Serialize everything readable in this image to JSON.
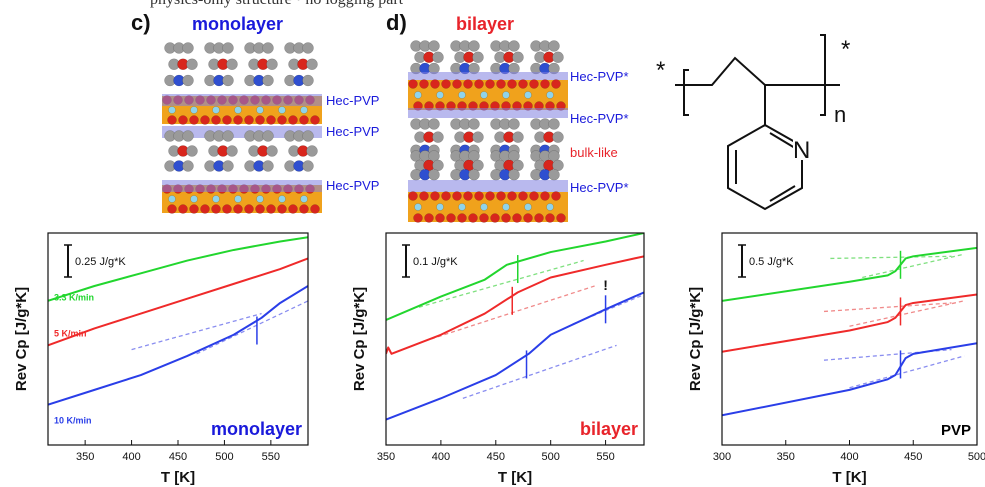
{
  "top_strip_text": "physics-only structure • no logging part",
  "panels": {
    "c": {
      "letter": "c)",
      "title": "monolayer",
      "title_color": "#1a1adb",
      "labels": [
        "Hec-PVP",
        "Hec-PVP",
        "Hec-PVP"
      ]
    },
    "d": {
      "letter": "d)",
      "title": "bilayer",
      "title_color": "#e8242b",
      "labels": [
        "Hec-PVP*",
        "Hec-PVP*",
        "bulk-like",
        "Hec-PVP*"
      ],
      "label_colors": [
        "#1a1adb",
        "#1a1adb",
        "#e8242b",
        "#1a1adb"
      ]
    }
  },
  "structure": {
    "star_left": "*",
    "star_right": "*",
    "subscript": "n",
    "nitrogen": "N"
  },
  "colors": {
    "green": "#22d62e",
    "red": "#ef2a2a",
    "blue": "#2a3ee8",
    "green_dash": "#7fe07f",
    "red_dash": "#f08a8a",
    "blue_dash": "#8a8ef0",
    "atom_red": "#d8261d",
    "atom_orange": "#f0a21c",
    "atom_cyan": "#8fd3ea",
    "atom_gray": "#9a9a9a",
    "band": "#7f7fe0"
  },
  "chart_data": [
    {
      "type": "line",
      "name": "monolayer",
      "panel_label": "monolayer",
      "panel_label_color": "#1a1adb",
      "xlabel": "T [K]",
      "ylabel": "Rev Cp [J/g*K]",
      "xlim": [
        310,
        590
      ],
      "xticks": [
        350,
        400,
        450,
        500,
        550
      ],
      "scale_bar": "0.25 J/g*K",
      "series": [
        {
          "name": "3.3 K/min",
          "color": "#22d62e",
          "label_color": "#22d62e",
          "x": [
            310,
            360,
            410,
            460,
            510,
            560,
            590
          ],
          "y": [
            0.68,
            0.75,
            0.81,
            0.87,
            0.92,
            0.96,
            0.98
          ]
        },
        {
          "name": "5 K/min",
          "color": "#ef2a2a",
          "label_color": "#ef2a2a",
          "x": [
            310,
            360,
            410,
            460,
            510,
            560,
            590
          ],
          "y": [
            0.47,
            0.55,
            0.62,
            0.69,
            0.76,
            0.83,
            0.88
          ]
        },
        {
          "name": "10 K/min",
          "color": "#2a3ee8",
          "label_color": "#2a3ee8",
          "x": [
            310,
            360,
            410,
            460,
            510,
            540,
            560,
            590
          ],
          "y": [
            0.19,
            0.26,
            0.33,
            0.42,
            0.52,
            0.6,
            0.67,
            0.75
          ]
        }
      ],
      "dashed": [
        {
          "color": "#8a8ef0",
          "x": [
            400,
            540
          ],
          "y": [
            0.45,
            0.62
          ]
        },
        {
          "color": "#8a8ef0",
          "x": [
            470,
            595
          ],
          "y": [
            0.43,
            0.69
          ]
        }
      ],
      "markers": [
        {
          "color": "#2a3ee8",
          "x": 535,
          "y": 0.54
        }
      ],
      "series_label_positions": [
        [
          0.46,
          0.7
        ],
        [
          0.42,
          0.53
        ],
        [
          0.3,
          0.12
        ]
      ]
    },
    {
      "type": "line",
      "name": "bilayer",
      "panel_label": "bilayer",
      "panel_label_color": "#e8242b",
      "xlabel": "T [K]",
      "ylabel": "Rev Cp [J/g*K]",
      "xlim": [
        350,
        585
      ],
      "xticks": [
        350,
        400,
        450,
        500,
        550
      ],
      "scale_bar": "0.1 J/g*K",
      "annotation": "!",
      "series": [
        {
          "name": "green",
          "color": "#22d62e",
          "x": [
            350,
            400,
            440,
            460,
            500,
            550,
            585
          ],
          "y": [
            0.59,
            0.7,
            0.78,
            0.85,
            0.91,
            0.96,
            1.0
          ]
        },
        {
          "name": "red",
          "color": "#ef2a2a",
          "x": [
            350,
            352,
            355,
            400,
            440,
            470,
            500,
            550,
            585
          ],
          "y": [
            0.43,
            0.46,
            0.43,
            0.52,
            0.62,
            0.72,
            0.79,
            0.85,
            0.89
          ]
        },
        {
          "name": "blue",
          "color": "#2a3ee8",
          "x": [
            350,
            400,
            450,
            480,
            500,
            550,
            585
          ],
          "y": [
            0.12,
            0.22,
            0.33,
            0.43,
            0.52,
            0.64,
            0.72
          ]
        }
      ],
      "dashed": [
        {
          "color": "#7fe07f",
          "x": [
            380,
            530
          ],
          "y": [
            0.65,
            0.87
          ]
        },
        {
          "color": "#f08a8a",
          "x": [
            385,
            540
          ],
          "y": [
            0.49,
            0.75
          ]
        },
        {
          "color": "#8a8ef0",
          "x": [
            420,
            560
          ],
          "y": [
            0.22,
            0.47
          ]
        },
        {
          "color": "#8a8ef0",
          "x": [
            520,
            590
          ],
          "y": [
            0.57,
            0.72
          ]
        }
      ],
      "markers": [
        {
          "color": "#22d62e",
          "x": 470,
          "y": 0.83
        },
        {
          "color": "#ef2a2a",
          "x": 465,
          "y": 0.68
        },
        {
          "color": "#2a3ee8",
          "x": 478,
          "y": 0.38
        },
        {
          "color": "#2a3ee8",
          "x": 550,
          "y": 0.64
        }
      ]
    },
    {
      "type": "line",
      "name": "PVP",
      "panel_label": "PVP",
      "panel_label_color": "#000000",
      "xlabel": "T [K]",
      "ylabel": "Rev Cp [J/g*K]",
      "xlim": [
        300,
        500
      ],
      "xticks": [
        300,
        350,
        400,
        450,
        500
      ],
      "scale_bar": "0.5 J/g*K",
      "series": [
        {
          "name": "green",
          "color": "#22d62e",
          "x": [
            300,
            400,
            430,
            436,
            444,
            450,
            500
          ],
          "y": [
            0.68,
            0.77,
            0.8,
            0.82,
            0.88,
            0.89,
            0.93
          ]
        },
        {
          "name": "red",
          "color": "#ef2a2a",
          "x": [
            300,
            400,
            430,
            436,
            444,
            450,
            500
          ],
          "y": [
            0.44,
            0.54,
            0.58,
            0.6,
            0.66,
            0.67,
            0.71
          ]
        },
        {
          "name": "blue",
          "color": "#2a3ee8",
          "x": [
            300,
            400,
            430,
            436,
            444,
            450,
            500
          ],
          "y": [
            0.14,
            0.26,
            0.31,
            0.33,
            0.41,
            0.43,
            0.48
          ]
        }
      ],
      "dashed": [
        {
          "color": "#7fe07f",
          "x": [
            385,
            480
          ],
          "y": [
            0.88,
            0.89
          ]
        },
        {
          "color": "#7fe07f",
          "x": [
            410,
            490
          ],
          "y": [
            0.79,
            0.9
          ]
        },
        {
          "color": "#f08a8a",
          "x": [
            380,
            480
          ],
          "y": [
            0.63,
            0.67
          ]
        },
        {
          "color": "#f08a8a",
          "x": [
            400,
            490
          ],
          "y": [
            0.56,
            0.68
          ]
        },
        {
          "color": "#8a8ef0",
          "x": [
            380,
            480
          ],
          "y": [
            0.4,
            0.45
          ]
        },
        {
          "color": "#8a8ef0",
          "x": [
            400,
            490
          ],
          "y": [
            0.27,
            0.42
          ]
        }
      ],
      "markers": [
        {
          "color": "#22d62e",
          "x": 440,
          "y": 0.85
        },
        {
          "color": "#ef2a2a",
          "x": 440,
          "y": 0.63
        },
        {
          "color": "#2a3ee8",
          "x": 440,
          "y": 0.38
        }
      ]
    }
  ]
}
